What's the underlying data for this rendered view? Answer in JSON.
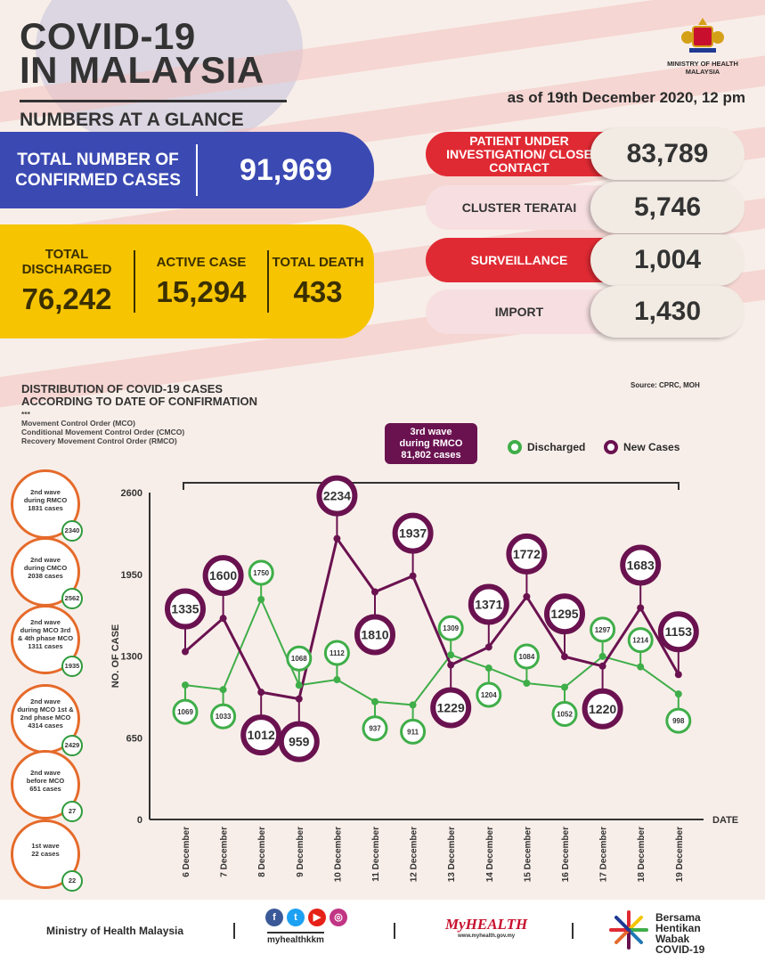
{
  "header": {
    "title_line1": "COVID-19",
    "title_line2": "IN MALAYSIA",
    "subtitle": "NUMBERS AT A GLANCE",
    "as_of": "as of 19th December 2020, 12 pm",
    "ministry_logo_text": "MINISTRY OF HEALTH MALAYSIA"
  },
  "totals": {
    "confirmed_label": "TOTAL NUMBER OF CONFIRMED CASES",
    "confirmed_value": "91,969",
    "discharged_label": "TOTAL DISCHARGED",
    "discharged_value": "76,242",
    "active_label": "ACTIVE CASE",
    "active_value": "15,294",
    "death_label": "TOTAL DEATH",
    "death_value": "433"
  },
  "categories": [
    {
      "label": "PATIENT UNDER INVESTIGATION/ CLOSE CONTACT",
      "value": "83,789",
      "style": "red"
    },
    {
      "label": "CLUSTER TERATAI",
      "value": "5,746",
      "style": "pink"
    },
    {
      "label": "SURVEILLANCE",
      "value": "1,004",
      "style": "red"
    },
    {
      "label": "IMPORT",
      "value": "1,430",
      "style": "pink"
    }
  ],
  "distribution": {
    "title_line1": "DISTRIBUTION OF COVID-19 CASES",
    "title_line2": "ACCORDING TO DATE OF CONFIRMATION",
    "notes": [
      "***",
      "Movement Control Order (MCO)",
      "Conditional Movement Control Order (CMCO)",
      "Recovery Movement Control Order (RMCO)"
    ],
    "source": "Source: CPRC, MOH",
    "third_wave": [
      "3rd wave",
      "during RMCO",
      "81,802 cases"
    ],
    "legend_discharged": "Discharged",
    "legend_new": "New Cases"
  },
  "waves": [
    {
      "lines": [
        "2nd wave",
        "during RMCO",
        "1831 cases"
      ],
      "discharged": "2340"
    },
    {
      "lines": [
        "2nd wave",
        "during CMCO",
        "2038 cases"
      ],
      "discharged": "2562"
    },
    {
      "lines": [
        "2nd wave",
        "during MCO 3rd",
        "& 4th phase MCO",
        "1311 cases"
      ],
      "discharged": "1935"
    },
    {
      "lines": [
        "2nd wave",
        "during MCO 1st &",
        "2nd phase MCO",
        "4314 cases"
      ],
      "discharged": "2429"
    },
    {
      "lines": [
        "2nd wave",
        "before MCO",
        "651 cases"
      ],
      "discharged": "27"
    },
    {
      "lines": [
        "1st wave",
        "22 cases"
      ],
      "discharged": "22"
    }
  ],
  "chart_data": {
    "type": "line",
    "title": "",
    "xlabel": "DATE",
    "ylabel": "NO. OF CASE",
    "ylim": [
      0,
      2600
    ],
    "yticks": [
      0,
      650,
      1300,
      1950,
      2600
    ],
    "categories": [
      "6 December",
      "7 December",
      "8 December",
      "9 December",
      "10 December",
      "11 December",
      "12 December",
      "13 December",
      "14 December",
      "15 December",
      "16 December",
      "17 December",
      "18 December",
      "19 December"
    ],
    "series": [
      {
        "name": "Discharged",
        "color": "#3fae49",
        "values": [
          1069,
          1033,
          1750,
          1068,
          1112,
          937,
          911,
          1309,
          1204,
          1084,
          1052,
          1297,
          1214,
          998
        ]
      },
      {
        "name": "New Cases",
        "color": "#6a1250",
        "values": [
          1335,
          1600,
          1012,
          959,
          2234,
          1810,
          1937,
          1229,
          1371,
          1772,
          1295,
          1220,
          1683,
          1153
        ]
      }
    ]
  },
  "footer": {
    "ministry": "Ministry of Health Malaysia",
    "handle": "myhealthkkm",
    "brand": "MyHEALTH",
    "brand_url": "www.myhealth.gov.my",
    "campaign": [
      "Bersama",
      "Hentikan",
      "Wabak",
      "COVID-19"
    ]
  }
}
